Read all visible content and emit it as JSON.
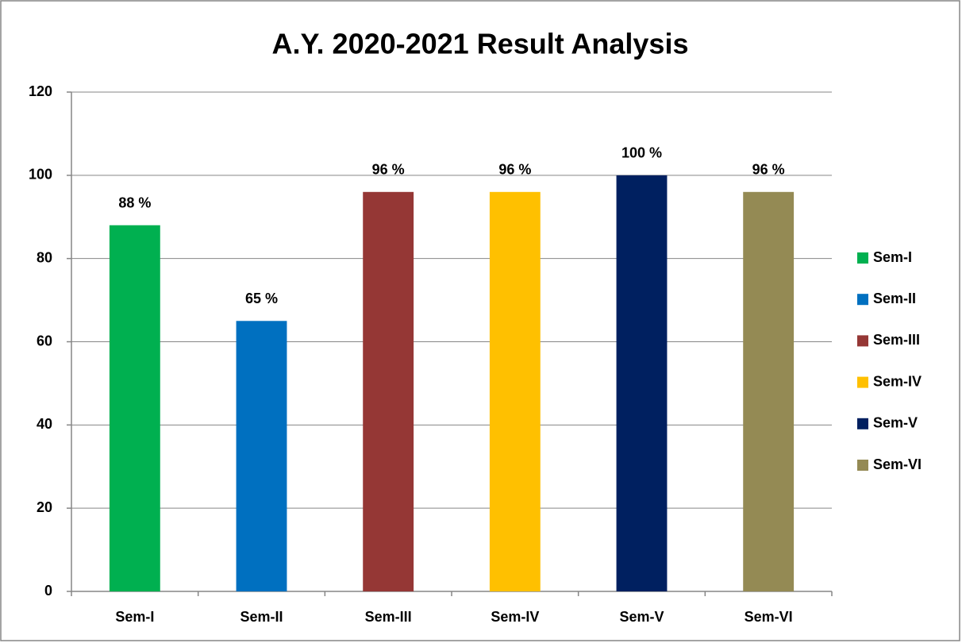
{
  "chart_data": {
    "type": "bar",
    "title": "A.Y. 2020-2021 Result Analysis",
    "categories": [
      "Sem-I",
      "Sem-II",
      "Sem-III",
      "Sem-IV",
      "Sem-V",
      "Sem-VI"
    ],
    "values": [
      88,
      65,
      96,
      96,
      100,
      96
    ],
    "value_labels": [
      "88 %",
      "65 %",
      "96 %",
      "96 %",
      "100 %",
      "96 %"
    ],
    "colors": [
      "#00b050",
      "#0070c0",
      "#953735",
      "#ffc000",
      "#002060",
      "#948a54"
    ],
    "ylim": [
      0,
      120
    ],
    "yticks": [
      0,
      20,
      40,
      60,
      80,
      100,
      120
    ],
    "grid": true,
    "legend": "right"
  }
}
